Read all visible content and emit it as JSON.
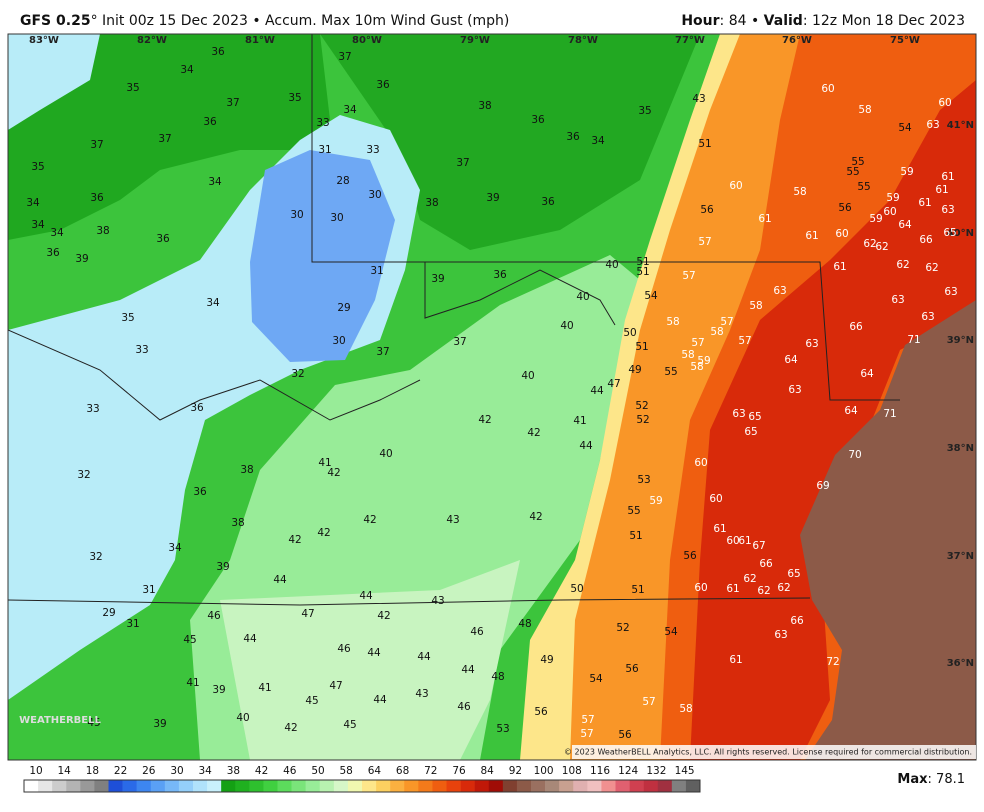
{
  "header": {
    "model": "GFS 0.25",
    "description": "° Init 00z 15 Dec 2023 • Accum. Max 10m Wind Gust (mph)",
    "hour_label": "Hour",
    "hour_text": ": 84 • ",
    "valid_label": "Valid",
    "valid_text": ": 12z Mon 18 Dec 2023"
  },
  "longitudes": [
    "83°W",
    "82°W",
    "81°W",
    "80°W",
    "79°W",
    "78°W",
    "77°W",
    "76°W",
    "75°W"
  ],
  "latitudes": [
    "41°N",
    "40°N",
    "39°N",
    "38°N",
    "37°N",
    "36°N"
  ],
  "map_values": [
    36,
    34,
    35,
    37,
    35,
    36,
    34,
    33,
    37,
    37,
    31,
    33,
    35,
    34,
    28,
    30,
    36,
    34,
    34,
    38,
    36,
    30,
    30,
    34,
    36,
    39,
    31,
    34,
    35,
    29,
    33,
    30,
    32,
    33,
    36,
    32,
    38,
    36,
    38,
    34,
    32,
    39,
    31,
    29,
    31,
    37,
    36,
    38,
    36,
    36,
    34,
    35,
    43,
    37,
    38,
    39,
    36,
    51,
    60,
    56,
    61,
    57,
    58,
    60,
    58,
    54,
    60,
    63,
    55,
    55,
    55,
    56,
    59,
    59,
    60,
    59,
    61,
    61,
    61,
    64,
    63,
    66,
    65,
    61,
    60,
    62,
    62,
    62,
    62,
    61,
    63,
    63,
    63,
    36,
    39,
    40,
    51,
    51,
    57,
    40,
    54,
    40,
    58,
    57,
    58,
    63,
    50,
    37,
    37,
    51,
    57,
    58,
    58,
    59,
    57,
    64,
    63,
    66,
    71,
    40,
    47,
    44,
    49,
    55,
    58,
    63,
    64,
    52,
    52,
    41,
    42,
    42,
    63,
    65,
    65,
    64,
    71,
    44,
    40,
    41,
    42,
    60,
    70,
    53,
    59,
    60,
    69,
    55,
    42,
    43,
    42,
    42,
    42,
    61,
    51,
    60,
    61,
    67,
    56,
    66,
    65,
    62,
    44,
    44,
    43,
    50,
    51,
    60,
    61,
    62,
    62,
    46,
    47,
    42,
    48,
    52,
    54,
    66,
    63,
    45,
    44,
    46,
    44,
    44,
    46,
    49,
    56,
    61,
    72,
    44,
    48,
    54,
    41,
    39,
    41,
    47,
    43,
    45,
    44,
    57,
    58,
    46,
    45,
    39,
    40,
    56,
    57,
    42,
    45,
    53,
    57,
    56
  ],
  "logo": "WEATHERBELL",
  "copyright": "© 2023 WeatherBELL Analytics, LLC. All rights reserved. License required for commercial distribution.",
  "colorbar": {
    "labels": [
      10,
      14,
      18,
      22,
      26,
      30,
      34,
      38,
      42,
      46,
      50,
      58,
      64,
      68,
      72,
      76,
      84,
      92,
      100,
      108,
      116,
      124,
      132,
      145
    ],
    "colors": [
      "#ffffff",
      "#e6e6e6",
      "#cccccc",
      "#b3b3b3",
      "#999999",
      "#808080",
      "#1e4fd8",
      "#2a6ae8",
      "#3d86f0",
      "#5aa0f5",
      "#77b8f8",
      "#94cffa",
      "#b0e2fb",
      "#c9f0fc",
      "#14a014",
      "#1fb01f",
      "#2ec02e",
      "#40d040",
      "#5cdc5c",
      "#7ae47a",
      "#98ec98",
      "#b8f2b0",
      "#d6f7c8",
      "#f0f8b0",
      "#fde68a",
      "#fcd060",
      "#fbb040",
      "#f99628",
      "#f47a1a",
      "#ef5e10",
      "#e8420c",
      "#d82a0a",
      "#c01808",
      "#a00c06",
      "#804030",
      "#8c5a48",
      "#9a7060",
      "#a88878",
      "#c8a090",
      "#e0b0b0",
      "#f0c0c0",
      "#f09090",
      "#e06070",
      "#d04050",
      "#c03040",
      "#a03040",
      "#808080",
      "#606060"
    ]
  },
  "max_label": "Max",
  "max_value": ": 78.1"
}
